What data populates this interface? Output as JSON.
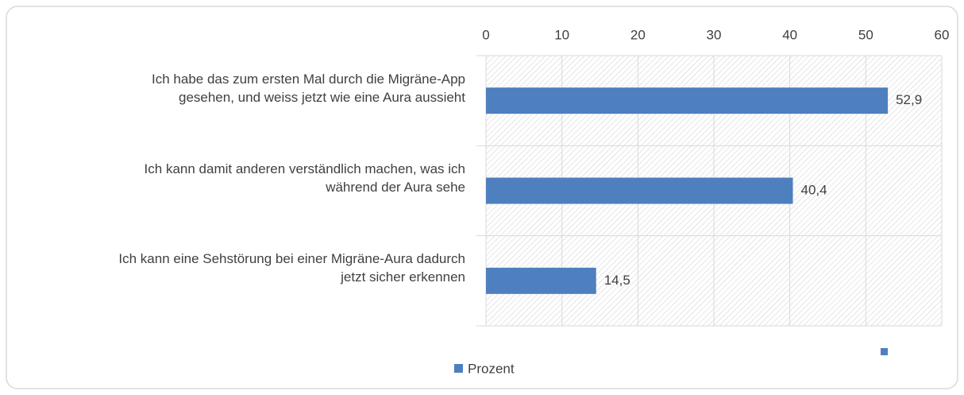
{
  "chart_data": {
    "type": "barh",
    "categories": [
      "Ich habe das zum ersten Mal durch die Migräne-App\ngesehen, und weiss jetzt wie eine Aura aussieht",
      "Ich kann damit anderen verständlich machen, was ich\nwährend der Aura sehe",
      "Ich kann eine Sehstörung bei einer Migräne-Aura dadurch\njetzt sicher erkennen"
    ],
    "series": [
      {
        "name": "Prozent",
        "color": "#4e7fbf",
        "values": [
          52.9,
          40.4,
          14.5
        ],
        "value_labels": [
          "52,9",
          "40,4",
          "14,5"
        ]
      }
    ],
    "xlim": [
      0,
      60
    ],
    "xticks": [
      0,
      10,
      20,
      30,
      40,
      50,
      60
    ],
    "grid": true,
    "legend": "bottom"
  }
}
